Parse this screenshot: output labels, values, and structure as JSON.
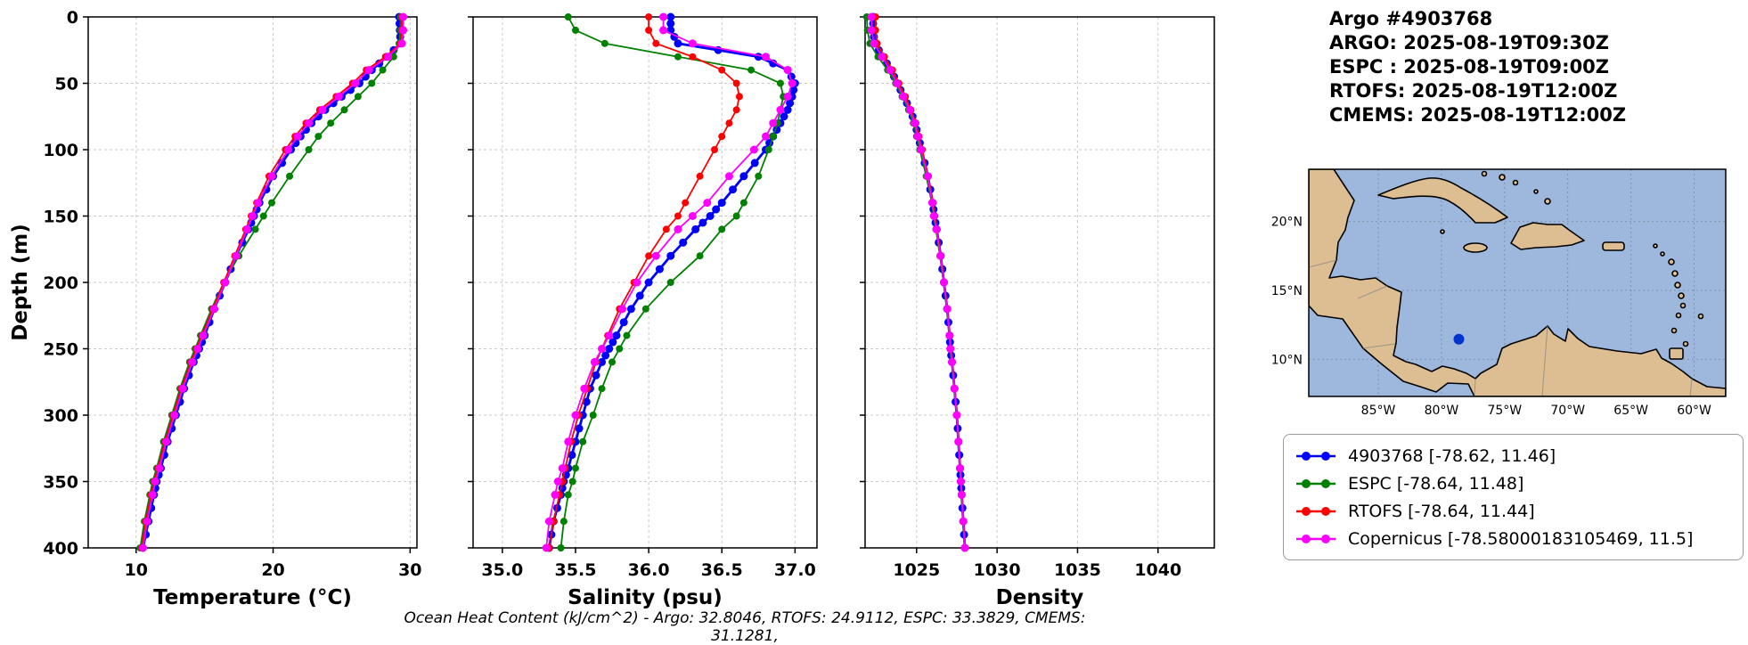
{
  "header": {
    "title": "Argo #4903768",
    "lines": [
      "ARGO: 2025-08-19T09:30Z",
      "ESPC : 2025-08-19T09:00Z",
      "RTOFS: 2025-08-19T12:00Z",
      "CMEMS: 2025-08-19T12:00Z"
    ]
  },
  "footer": {
    "text": "Ocean Heat Content (kJ/cm^2) - Argo: 32.8046,  RTOFS: 24.9112,  ESPC: 33.3829,  CMEMS: 31.1281,"
  },
  "legend": {
    "entries": [
      {
        "label": "4903768 [-78.62, 11.46]",
        "color": "#0000ff"
      },
      {
        "label": "ESPC [-78.64, 11.48]",
        "color": "#008000"
      },
      {
        "label": "RTOFS [-78.64, 11.44]",
        "color": "#ff0000"
      },
      {
        "label": "Copernicus [-78.58000183105469, 11.5]",
        "color": "#ff00ff"
      }
    ]
  },
  "map": {
    "extent": {
      "lon_min": -90.5,
      "lon_max": -57.5,
      "lat_min": 7.3,
      "lat_max": 23.8
    },
    "lon_ticks": [
      "85°W",
      "80°W",
      "75°W",
      "70°W",
      "65°W",
      "60°W"
    ],
    "lon_tick_values": [
      -85,
      -80,
      -75,
      -70,
      -65,
      -60
    ],
    "lat_ticks": [
      "20°N",
      "15°N",
      "10°N"
    ],
    "lat_tick_values": [
      20,
      15,
      10
    ],
    "marker": {
      "lon": -78.62,
      "lat": 11.46,
      "color": "#0033cc"
    }
  },
  "chart_data": [
    {
      "type": "line",
      "name": "temperature",
      "xlabel": "Temperature (°C)",
      "ylabel": "Depth (m)",
      "xlim": [
        6.5,
        30.5
      ],
      "ylim": [
        0,
        400
      ],
      "x_ticks": [
        10,
        20,
        30
      ],
      "x_tick_labels": [
        "10",
        "20",
        "30"
      ],
      "y_ticks": [
        0,
        50,
        100,
        150,
        200,
        250,
        300,
        350,
        400
      ],
      "show_y_tick_labels": true,
      "grid": true,
      "depths": [
        0,
        10,
        20,
        30,
        40,
        50,
        60,
        70,
        80,
        90,
        100,
        120,
        140,
        150,
        160,
        180,
        200,
        220,
        240,
        250,
        260,
        280,
        300,
        320,
        340,
        350,
        360,
        380,
        400
      ],
      "series": [
        {
          "name": "4903768",
          "color": "#0000ff",
          "line_width": 2.8,
          "marker_size": 4.5,
          "dense": true,
          "values": [
            29.2,
            29.25,
            29.3,
            28.3,
            27.2,
            26.3,
            25.0,
            23.8,
            22.8,
            22.0,
            21.3,
            20.0,
            19.0,
            18.6,
            18.2,
            17.3,
            16.5,
            15.7,
            15.0,
            14.6,
            14.2,
            13.5,
            12.9,
            12.3,
            11.8,
            11.5,
            11.3,
            10.9,
            10.5
          ]
        },
        {
          "name": "ESPC",
          "color": "#008000",
          "line_width": 1.8,
          "marker_size": 4,
          "dense": false,
          "values": [
            29.3,
            29.3,
            29.2,
            28.8,
            28.0,
            27.2,
            26.2,
            25.2,
            24.2,
            23.3,
            22.6,
            21.2,
            19.9,
            19.3,
            18.7,
            17.5,
            16.4,
            15.5,
            14.7,
            14.3,
            13.9,
            13.2,
            12.6,
            12.0,
            11.5,
            11.2,
            11.0,
            10.6,
            10.3
          ]
        },
        {
          "name": "RTOFS",
          "color": "#ff0000",
          "line_width": 1.8,
          "marker_size": 4,
          "dense": false,
          "values": [
            29.4,
            29.4,
            29.3,
            28.2,
            26.8,
            25.8,
            24.6,
            23.4,
            22.4,
            21.6,
            20.9,
            19.7,
            18.8,
            18.4,
            18.0,
            17.2,
            16.4,
            15.6,
            14.8,
            14.4,
            14.0,
            13.3,
            12.7,
            12.1,
            11.6,
            11.3,
            11.1,
            10.7,
            10.4
          ]
        },
        {
          "name": "Copernicus",
          "color": "#ff00ff",
          "line_width": 1.8,
          "marker_size": 4.5,
          "dense": false,
          "values": [
            29.5,
            29.5,
            29.4,
            28.4,
            27.0,
            26.0,
            24.8,
            23.6,
            22.6,
            21.8,
            21.1,
            19.9,
            18.9,
            18.5,
            18.1,
            17.3,
            16.5,
            15.7,
            14.9,
            14.5,
            14.1,
            13.4,
            12.8,
            12.2,
            11.7,
            11.4,
            11.2,
            10.8,
            10.5
          ]
        }
      ]
    },
    {
      "type": "line",
      "name": "salinity",
      "xlabel": "Salinity (psu)",
      "ylabel": "",
      "xlim": [
        34.8,
        37.15
      ],
      "ylim": [
        0,
        400
      ],
      "x_ticks": [
        35.0,
        35.5,
        36.0,
        36.5,
        37.0
      ],
      "x_tick_labels": [
        "35.0",
        "35.5",
        "36.0",
        "36.5",
        "37.0"
      ],
      "y_ticks": [
        0,
        50,
        100,
        150,
        200,
        250,
        300,
        350,
        400
      ],
      "show_y_tick_labels": false,
      "grid": true,
      "depths": [
        0,
        10,
        20,
        30,
        40,
        50,
        60,
        70,
        80,
        90,
        100,
        120,
        140,
        150,
        160,
        180,
        200,
        220,
        240,
        250,
        260,
        280,
        300,
        320,
        340,
        350,
        360,
        380,
        400
      ],
      "series": [
        {
          "name": "4903768",
          "color": "#0000ff",
          "line_width": 2.8,
          "marker_size": 4.5,
          "dense": true,
          "values": [
            36.15,
            36.15,
            36.2,
            36.75,
            36.95,
            37.0,
            36.98,
            36.95,
            36.9,
            36.85,
            36.8,
            36.65,
            36.5,
            36.42,
            36.32,
            36.15,
            36.0,
            35.88,
            35.78,
            35.73,
            35.68,
            35.6,
            35.55,
            35.5,
            35.45,
            35.42,
            35.4,
            35.35,
            35.32
          ]
        },
        {
          "name": "ESPC",
          "color": "#008000",
          "line_width": 1.8,
          "marker_size": 4,
          "dense": false,
          "values": [
            35.45,
            35.5,
            35.7,
            36.2,
            36.7,
            36.9,
            36.92,
            36.9,
            36.88,
            36.85,
            36.82,
            36.75,
            36.65,
            36.6,
            36.5,
            36.35,
            36.15,
            35.98,
            35.85,
            35.8,
            35.75,
            35.68,
            35.62,
            35.55,
            35.5,
            35.48,
            35.45,
            35.42,
            35.4
          ]
        },
        {
          "name": "RTOFS",
          "color": "#ff0000",
          "line_width": 1.8,
          "marker_size": 4,
          "dense": false,
          "values": [
            36.0,
            36.0,
            36.05,
            36.3,
            36.5,
            36.6,
            36.62,
            36.6,
            36.55,
            36.5,
            36.45,
            36.35,
            36.25,
            36.2,
            36.12,
            36.0,
            35.9,
            35.8,
            35.72,
            35.68,
            35.64,
            35.58,
            35.52,
            35.47,
            35.43,
            35.41,
            35.39,
            35.35,
            35.32
          ]
        },
        {
          "name": "Copernicus",
          "color": "#ff00ff",
          "line_width": 1.8,
          "marker_size": 4.5,
          "dense": false,
          "values": [
            36.1,
            36.1,
            36.3,
            36.8,
            36.95,
            36.98,
            36.95,
            36.9,
            36.85,
            36.8,
            36.72,
            36.55,
            36.4,
            36.3,
            36.2,
            36.05,
            35.92,
            35.82,
            35.73,
            35.68,
            35.63,
            35.56,
            35.5,
            35.45,
            35.41,
            35.38,
            35.36,
            35.32,
            35.3
          ]
        }
      ]
    },
    {
      "type": "line",
      "name": "density",
      "xlabel": "Density",
      "ylabel": "",
      "xlim": [
        1021.8,
        1043.5
      ],
      "ylim": [
        0,
        400
      ],
      "x_ticks": [
        1025,
        1030,
        1035,
        1040
      ],
      "x_tick_labels": [
        "1025",
        "1030",
        "1035",
        "1040"
      ],
      "y_ticks": [
        0,
        50,
        100,
        150,
        200,
        250,
        300,
        350,
        400
      ],
      "show_y_tick_labels": false,
      "grid": true,
      "depths": [
        0,
        10,
        20,
        30,
        40,
        50,
        60,
        70,
        80,
        90,
        100,
        120,
        140,
        150,
        160,
        180,
        200,
        220,
        240,
        250,
        260,
        280,
        300,
        320,
        340,
        350,
        360,
        380,
        400
      ],
      "series": [
        {
          "name": "4903768",
          "color": "#0000ff",
          "line_width": 2.8,
          "marker_size": 4.5,
          "dense": true,
          "values": [
            1022.3,
            1022.3,
            1022.4,
            1022.9,
            1023.4,
            1023.8,
            1024.2,
            1024.6,
            1024.9,
            1025.1,
            1025.3,
            1025.7,
            1026.0,
            1026.1,
            1026.25,
            1026.5,
            1026.7,
            1026.9,
            1027.05,
            1027.1,
            1027.2,
            1027.35,
            1027.5,
            1027.6,
            1027.7,
            1027.75,
            1027.8,
            1027.9,
            1028.0
          ]
        },
        {
          "name": "ESPC",
          "color": "#008000",
          "line_width": 1.8,
          "marker_size": 4,
          "dense": false,
          "values": [
            1021.9,
            1021.95,
            1022.1,
            1022.6,
            1023.2,
            1023.7,
            1024.1,
            1024.5,
            1024.8,
            1025.0,
            1025.2,
            1025.6,
            1025.95,
            1026.05,
            1026.2,
            1026.45,
            1026.68,
            1026.88,
            1027.03,
            1027.08,
            1027.18,
            1027.33,
            1027.48,
            1027.58,
            1027.68,
            1027.73,
            1027.78,
            1027.88,
            1027.98
          ]
        },
        {
          "name": "RTOFS",
          "color": "#ff0000",
          "line_width": 1.8,
          "marker_size": 4,
          "dense": false,
          "values": [
            1022.45,
            1022.45,
            1022.55,
            1023.0,
            1023.5,
            1023.9,
            1024.3,
            1024.65,
            1024.95,
            1025.15,
            1025.35,
            1025.72,
            1026.02,
            1026.12,
            1026.27,
            1026.52,
            1026.72,
            1026.92,
            1027.07,
            1027.12,
            1027.22,
            1027.37,
            1027.52,
            1027.62,
            1027.72,
            1027.77,
            1027.82,
            1027.92,
            1028.02
          ]
        },
        {
          "name": "Copernicus",
          "color": "#ff00ff",
          "line_width": 1.8,
          "marker_size": 4.5,
          "dense": false,
          "values": [
            1022.2,
            1022.2,
            1022.35,
            1022.85,
            1023.35,
            1023.78,
            1024.18,
            1024.58,
            1024.88,
            1025.08,
            1025.28,
            1025.68,
            1025.98,
            1026.08,
            1026.23,
            1026.48,
            1026.7,
            1026.9,
            1027.05,
            1027.1,
            1027.2,
            1027.35,
            1027.5,
            1027.6,
            1027.7,
            1027.75,
            1027.8,
            1027.9,
            1028.0
          ]
        }
      ]
    }
  ]
}
